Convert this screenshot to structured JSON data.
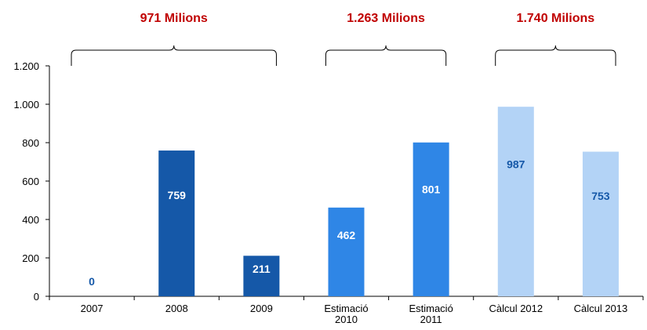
{
  "chart_data": {
    "type": "bar",
    "categories": [
      [
        "2007"
      ],
      [
        "2008"
      ],
      [
        "2009"
      ],
      [
        "Estimació",
        "2010"
      ],
      [
        "Estimació",
        "2011"
      ],
      [
        "Càlcul 2012"
      ],
      [
        "Càlcul 2013"
      ]
    ],
    "values": [
      0,
      759,
      211,
      462,
      801,
      987,
      753
    ],
    "value_labels": [
      "0",
      "759",
      "211",
      "462",
      "801",
      "987",
      "753"
    ],
    "bar_colors": [
      "#1558a8",
      "#1558a8",
      "#1558a8",
      "#2f86e6",
      "#2f86e6",
      "#b3d3f6",
      "#b3d3f6"
    ],
    "value_label_colors": [
      "#1558a8",
      "#ffffff",
      "#ffffff",
      "#ffffff",
      "#ffffff",
      "#1558a8",
      "#1558a8"
    ],
    "ylim": [
      0,
      1200
    ],
    "yticks": [
      0,
      200,
      400,
      600,
      800,
      1000,
      1200
    ],
    "ytick_labels": [
      "0",
      "200",
      "400",
      "600",
      "800",
      "1.000",
      "1.200"
    ],
    "grid": false,
    "groups": [
      {
        "label": "971 Milions",
        "from": 0,
        "to": 2
      },
      {
        "label": "1.263 Milions",
        "from": 3,
        "to": 4
      },
      {
        "label": "1.740 Milions",
        "from": 5,
        "to": 6
      }
    ],
    "group_label_color": "#c00000"
  }
}
